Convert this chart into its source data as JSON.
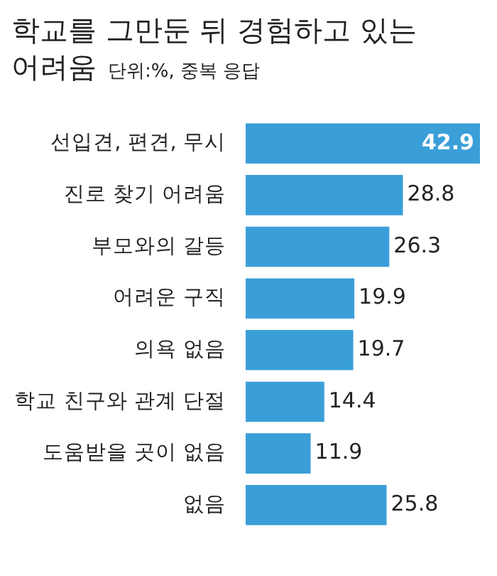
{
  "chart_data": {
    "type": "bar",
    "orientation": "horizontal",
    "title": "학교를 그만둔 뒤 경험하고 있는 어려움",
    "subtitle": "단위:%, 중복 응답",
    "categories": [
      "선입견, 편견, 무시",
      "진로 찾기 어려움",
      "부모와의 갈등",
      "어려운 구직",
      "의욕 없음",
      "학교 친구와 관계 단절",
      "도움받을 곳이 없음",
      "없음"
    ],
    "values": [
      42.9,
      28.8,
      26.3,
      19.9,
      19.7,
      14.4,
      11.9,
      25.8
    ],
    "color": "#3a9fd8",
    "data_labels": true,
    "legend": false,
    "tick_labels": "y"
  }
}
